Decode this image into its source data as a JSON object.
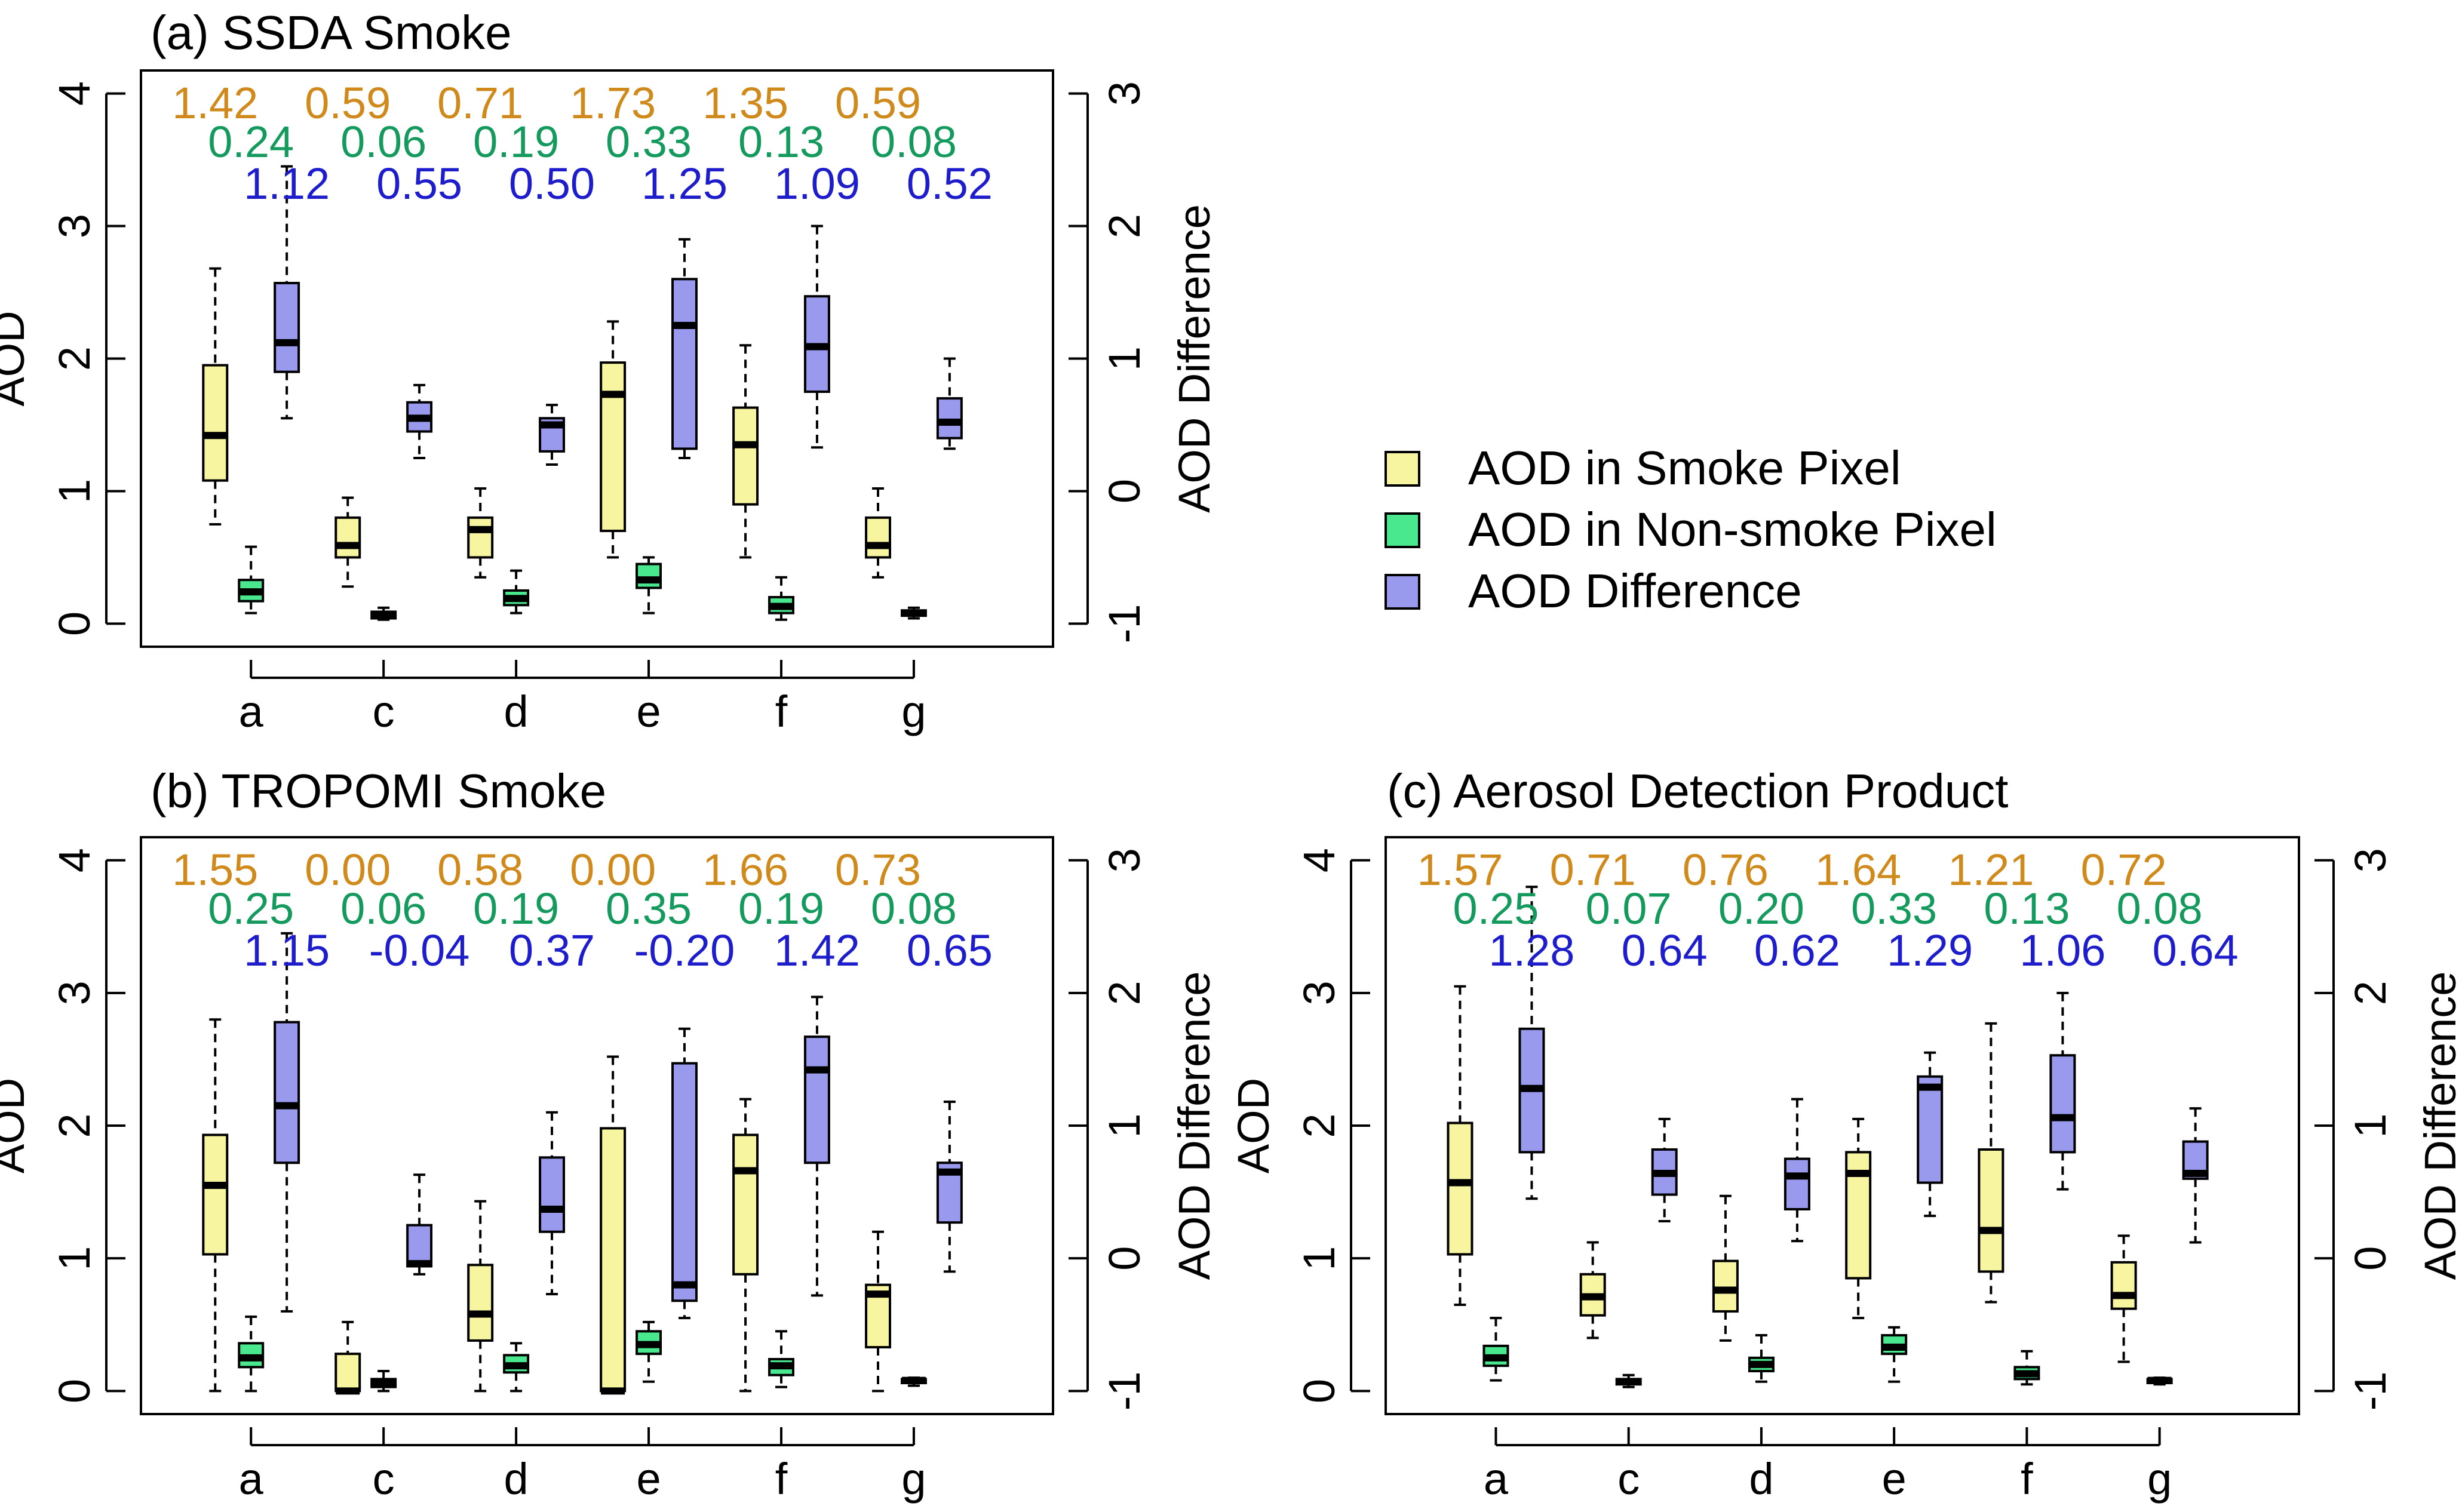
{
  "legend": {
    "items": [
      {
        "label": "AOD in Smoke Pixel",
        "color": "#f8f5a0"
      },
      {
        "label": "AOD in Non-smoke Pixel",
        "color": "#49e88e"
      },
      {
        "label": "AOD Difference",
        "color": "#9999ee"
      }
    ]
  },
  "colors": {
    "smoke_text": "#d08a1c",
    "nonsmoke_text": "#159a5e",
    "diff_text": "#1d1dcc",
    "smoke_fill": "#f8f5a0",
    "nonsmoke_fill": "#49e88e",
    "diff_fill": "#9999ee"
  },
  "chart_data": [
    {
      "type": "box",
      "title": "(a) SSDA Smoke",
      "ylabel": "AOD",
      "y2label": "AOD Difference",
      "ylim": [
        0,
        4
      ],
      "y2lim": [
        -1,
        3
      ],
      "yticks": [
        "0",
        "1",
        "2",
        "3",
        "4"
      ],
      "y2ticks": [
        "-1",
        "0",
        "1",
        "2",
        "3"
      ],
      "categories": [
        "a",
        "c",
        "d",
        "e",
        "f",
        "g"
      ],
      "annotations": {
        "smoke": [
          "1.42",
          "0.59",
          "0.71",
          "1.73",
          "1.35",
          "0.59"
        ],
        "nonsmoke": [
          "0.24",
          "0.06",
          "0.19",
          "0.33",
          "0.13",
          "0.08"
        ],
        "diff": [
          "1.12",
          "0.55",
          "0.50",
          "1.25",
          "1.09",
          "0.52"
        ]
      },
      "series": [
        {
          "name": "AOD in Smoke Pixel",
          "boxes": [
            [
              0.75,
              1.08,
              1.42,
              1.95,
              2.68
            ],
            [
              0.28,
              0.5,
              0.59,
              0.8,
              0.95
            ],
            [
              0.35,
              0.5,
              0.71,
              0.8,
              1.02
            ],
            [
              0.5,
              0.7,
              1.73,
              1.97,
              2.28
            ],
            [
              0.5,
              0.9,
              1.35,
              1.63,
              2.1
            ],
            [
              0.35,
              0.5,
              0.59,
              0.8,
              1.02
            ]
          ]
        },
        {
          "name": "AOD in Non-smoke Pixel",
          "boxes": [
            [
              0.08,
              0.17,
              0.24,
              0.33,
              0.58
            ],
            [
              0.03,
              0.04,
              0.06,
              0.09,
              0.12
            ],
            [
              0.08,
              0.14,
              0.19,
              0.25,
              0.4
            ],
            [
              0.08,
              0.27,
              0.33,
              0.45,
              0.5
            ],
            [
              0.03,
              0.08,
              0.13,
              0.2,
              0.35
            ],
            [
              0.04,
              0.06,
              0.08,
              0.1,
              0.12
            ]
          ]
        },
        {
          "name": "AOD Difference",
          "boxes": [
            [
              0.55,
              0.9,
              1.12,
              1.57,
              2.45
            ],
            [
              0.25,
              0.45,
              0.55,
              0.67,
              0.8
            ],
            [
              0.2,
              0.3,
              0.5,
              0.55,
              0.65
            ],
            [
              0.25,
              0.32,
              1.25,
              1.6,
              1.9
            ],
            [
              0.33,
              0.75,
              1.09,
              1.47,
              2.0
            ],
            [
              0.32,
              0.4,
              0.52,
              0.7,
              1.0
            ]
          ]
        }
      ]
    },
    {
      "type": "box",
      "title": "(b) TROPOMI Smoke",
      "ylabel": "AOD",
      "y2label": "AOD Difference",
      "ylim": [
        0,
        4
      ],
      "y2lim": [
        -1,
        3
      ],
      "yticks": [
        "0",
        "1",
        "2",
        "3",
        "4"
      ],
      "y2ticks": [
        "-1",
        "0",
        "1",
        "2",
        "3"
      ],
      "categories": [
        "a",
        "c",
        "d",
        "e",
        "f",
        "g"
      ],
      "annotations": {
        "smoke": [
          "1.55",
          "0.00",
          "0.58",
          "0.00",
          "1.66",
          "0.73"
        ],
        "nonsmoke": [
          "0.25",
          "0.06",
          "0.19",
          "0.35",
          "0.19",
          "0.08"
        ],
        "diff": [
          "1.15",
          "-0.04",
          "0.37",
          "-0.20",
          "1.42",
          "0.65"
        ]
      },
      "series": [
        {
          "name": "AOD in Smoke Pixel",
          "boxes": [
            [
              0.0,
              1.03,
              1.55,
              1.93,
              2.8
            ],
            [
              0.0,
              0.0,
              0.0,
              0.28,
              0.52
            ],
            [
              0.0,
              0.38,
              0.58,
              0.95,
              1.43
            ],
            [
              0.0,
              0.0,
              0.0,
              1.98,
              2.52
            ],
            [
              0.0,
              0.88,
              1.66,
              1.93,
              2.2
            ],
            [
              0.0,
              0.33,
              0.73,
              0.8,
              1.2
            ]
          ]
        },
        {
          "name": "AOD in Non-smoke Pixel",
          "boxes": [
            [
              0.0,
              0.18,
              0.25,
              0.36,
              0.56
            ],
            [
              0.0,
              0.03,
              0.06,
              0.09,
              0.15
            ],
            [
              0.0,
              0.14,
              0.19,
              0.27,
              0.36
            ],
            [
              0.07,
              0.28,
              0.35,
              0.45,
              0.52
            ],
            [
              0.03,
              0.12,
              0.19,
              0.24,
              0.45
            ],
            [
              0.04,
              0.06,
              0.08,
              0.09,
              0.1
            ]
          ]
        },
        {
          "name": "AOD Difference",
          "boxes": [
            [
              -0.4,
              0.72,
              1.15,
              1.78,
              2.45
            ],
            [
              -0.12,
              -0.06,
              -0.04,
              0.25,
              0.63
            ],
            [
              -0.27,
              0.2,
              0.37,
              0.76,
              1.1
            ],
            [
              -0.45,
              -0.32,
              -0.2,
              1.47,
              1.73
            ],
            [
              -0.28,
              0.72,
              1.42,
              1.67,
              1.97
            ],
            [
              -0.1,
              0.27,
              0.65,
              0.72,
              1.18
            ]
          ]
        }
      ]
    },
    {
      "type": "box",
      "title": "(c) Aerosol Detection Product",
      "ylabel": "AOD",
      "y2label": "AOD Difference",
      "ylim": [
        0,
        4
      ],
      "y2lim": [
        -1,
        3
      ],
      "yticks": [
        "0",
        "1",
        "2",
        "3",
        "4"
      ],
      "y2ticks": [
        "-1",
        "0",
        "1",
        "2",
        "3"
      ],
      "categories": [
        "a",
        "c",
        "d",
        "e",
        "f",
        "g"
      ],
      "annotations": {
        "smoke": [
          "1.57",
          "0.71",
          "0.76",
          "1.64",
          "1.21",
          "0.72"
        ],
        "nonsmoke": [
          "0.25",
          "0.07",
          "0.20",
          "0.33",
          "0.13",
          "0.08"
        ],
        "diff": [
          "1.28",
          "0.64",
          "0.62",
          "1.29",
          "1.06",
          "0.64"
        ]
      },
      "series": [
        {
          "name": "AOD in Smoke Pixel",
          "boxes": [
            [
              0.65,
              1.03,
              1.57,
              2.02,
              3.05
            ],
            [
              0.4,
              0.57,
              0.71,
              0.88,
              1.12
            ],
            [
              0.38,
              0.6,
              0.76,
              0.98,
              1.47
            ],
            [
              0.55,
              0.85,
              1.64,
              1.8,
              2.05
            ],
            [
              0.67,
              0.9,
              1.21,
              1.82,
              2.77
            ],
            [
              0.22,
              0.62,
              0.72,
              0.97,
              1.17
            ]
          ]
        },
        {
          "name": "AOD in Non-smoke Pixel",
          "boxes": [
            [
              0.08,
              0.19,
              0.25,
              0.34,
              0.55
            ],
            [
              0.03,
              0.05,
              0.07,
              0.09,
              0.12
            ],
            [
              0.07,
              0.15,
              0.2,
              0.25,
              0.42
            ],
            [
              0.07,
              0.28,
              0.33,
              0.42,
              0.48
            ],
            [
              0.05,
              0.09,
              0.13,
              0.18,
              0.3
            ],
            [
              0.05,
              0.06,
              0.08,
              0.09,
              0.1
            ]
          ]
        },
        {
          "name": "AOD Difference",
          "boxes": [
            [
              0.45,
              0.8,
              1.28,
              1.73,
              2.8
            ],
            [
              0.28,
              0.48,
              0.64,
              0.82,
              1.05
            ],
            [
              0.13,
              0.37,
              0.62,
              0.75,
              1.2
            ],
            [
              0.32,
              0.57,
              1.29,
              1.37,
              1.55
            ],
            [
              0.52,
              0.8,
              1.06,
              1.53,
              2.0
            ],
            [
              0.12,
              0.6,
              0.64,
              0.88,
              1.13
            ]
          ]
        }
      ]
    }
  ]
}
